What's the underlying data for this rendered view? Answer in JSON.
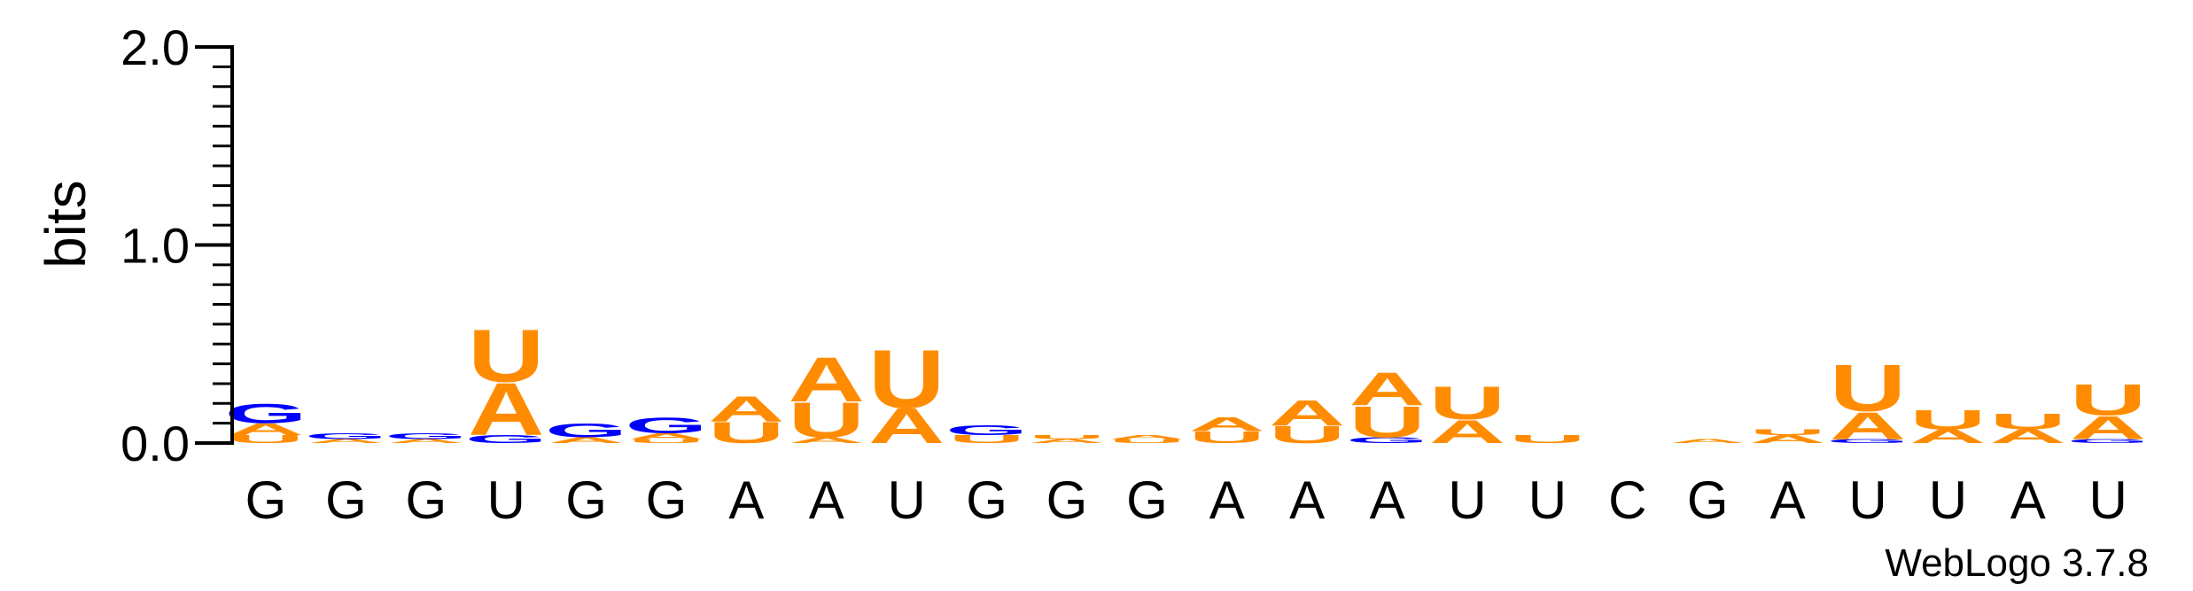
{
  "chart_data": {
    "type": "sequence-logo",
    "ylabel": "bits",
    "ylim": [
      0,
      2.0
    ],
    "yticks": [
      {
        "value": 0.0,
        "label": "0.0"
      },
      {
        "value": 1.0,
        "label": "1.0"
      },
      {
        "value": 2.0,
        "label": "2.0"
      }
    ],
    "consensus": [
      "G",
      "G",
      "G",
      "U",
      "G",
      "G",
      "A",
      "A",
      "U",
      "G",
      "G",
      "G",
      "A",
      "A",
      "A",
      "U",
      "U",
      "C",
      "G",
      "A",
      "U",
      "U",
      "A",
      "U"
    ],
    "colors": {
      "A": "#ff8c00",
      "U": "#ff8c00",
      "G": "#0000ff",
      "C": "#0000ff"
    },
    "positions": [
      {
        "stack": [
          {
            "letter": "U",
            "bits": 0.04
          },
          {
            "letter": "A",
            "bits": 0.06
          },
          {
            "letter": "G",
            "bits": 0.1
          }
        ]
      },
      {
        "stack": [
          {
            "letter": "A",
            "bits": 0.02
          },
          {
            "letter": "G",
            "bits": 0.03
          }
        ]
      },
      {
        "stack": [
          {
            "letter": "A",
            "bits": 0.02
          },
          {
            "letter": "G",
            "bits": 0.03
          }
        ]
      },
      {
        "stack": [
          {
            "letter": "G",
            "bits": 0.04
          },
          {
            "letter": "A",
            "bits": 0.27
          },
          {
            "letter": "U",
            "bits": 0.27
          }
        ]
      },
      {
        "stack": [
          {
            "letter": "A",
            "bits": 0.03
          },
          {
            "letter": "G",
            "bits": 0.07
          }
        ]
      },
      {
        "stack": [
          {
            "letter": "U",
            "bits": 0.02
          },
          {
            "letter": "A",
            "bits": 0.03
          },
          {
            "letter": "G",
            "bits": 0.08
          }
        ]
      },
      {
        "stack": [
          {
            "letter": "U",
            "bits": 0.11
          },
          {
            "letter": "A",
            "bits": 0.13
          }
        ]
      },
      {
        "stack": [
          {
            "letter": "A",
            "bits": 0.03
          },
          {
            "letter": "U",
            "bits": 0.18
          },
          {
            "letter": "A",
            "bits": 0.23
          }
        ]
      },
      {
        "stack": [
          {
            "letter": "A",
            "bits": 0.18
          },
          {
            "letter": "U",
            "bits": 0.3
          }
        ]
      },
      {
        "stack": [
          {
            "letter": "U",
            "bits": 0.04
          },
          {
            "letter": "G",
            "bits": 0.05
          }
        ]
      },
      {
        "stack": [
          {
            "letter": "A",
            "bits": 0.02
          },
          {
            "letter": "U",
            "bits": 0.02
          }
        ]
      },
      {
        "stack": [
          {
            "letter": "U",
            "bits": 0.02
          },
          {
            "letter": "A",
            "bits": 0.02
          }
        ]
      },
      {
        "stack": [
          {
            "letter": "U",
            "bits": 0.06
          },
          {
            "letter": "A",
            "bits": 0.07
          }
        ]
      },
      {
        "stack": [
          {
            "letter": "U",
            "bits": 0.09
          },
          {
            "letter": "A",
            "bits": 0.13
          }
        ]
      },
      {
        "stack": [
          {
            "letter": "G",
            "bits": 0.03
          },
          {
            "letter": "U",
            "bits": 0.16
          },
          {
            "letter": "A",
            "bits": 0.17
          }
        ]
      },
      {
        "stack": [
          {
            "letter": "A",
            "bits": 0.12
          },
          {
            "letter": "U",
            "bits": 0.17
          }
        ]
      },
      {
        "stack": [
          {
            "letter": "U",
            "bits": 0.04
          }
        ]
      },
      {
        "stack": []
      },
      {
        "stack": [
          {
            "letter": "A",
            "bits": 0.02
          }
        ]
      },
      {
        "stack": [
          {
            "letter": "A",
            "bits": 0.04
          },
          {
            "letter": "U",
            "bits": 0.03
          }
        ]
      },
      {
        "stack": [
          {
            "letter": "G",
            "bits": 0.02
          },
          {
            "letter": "A",
            "bits": 0.14
          },
          {
            "letter": "U",
            "bits": 0.24
          }
        ]
      },
      {
        "stack": [
          {
            "letter": "A",
            "bits": 0.07
          },
          {
            "letter": "U",
            "bits": 0.1
          }
        ]
      },
      {
        "stack": [
          {
            "letter": "A",
            "bits": 0.07
          },
          {
            "letter": "U",
            "bits": 0.08
          }
        ]
      },
      {
        "stack": [
          {
            "letter": "G",
            "bits": 0.02
          },
          {
            "letter": "A",
            "bits": 0.12
          },
          {
            "letter": "U",
            "bits": 0.16
          }
        ]
      }
    ]
  },
  "credit": "WebLogo 3.7.8"
}
